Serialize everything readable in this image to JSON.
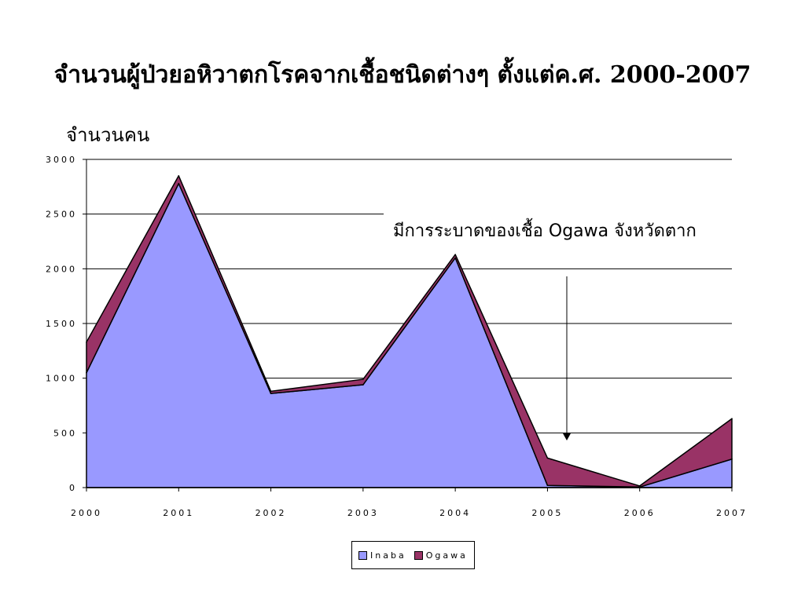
{
  "chart_data": {
    "type": "area",
    "stacked": true,
    "title": "จำนวนผู้ป่วยอหิวาตกโรคจากเชื้อชนิดต่างๆ ตั้งแต่ค.ศ. 2000-2007",
    "ylabel": "จำนวนคน",
    "xlabel": "",
    "categories": [
      "2000",
      "2001",
      "2002",
      "2003",
      "2004",
      "2005",
      "2006",
      "2007"
    ],
    "ylim": [
      0,
      3000
    ],
    "yticks": [
      0,
      500,
      1000,
      1500,
      2000,
      2500,
      3000
    ],
    "grid": "horizontal",
    "legend_position": "bottom",
    "series": [
      {
        "name": "Inaba",
        "color": "#9999FF",
        "values": [
          1050,
          2780,
          860,
          940,
          2100,
          20,
          5,
          260
        ]
      },
      {
        "name": "Ogawa",
        "color": "#993366",
        "values": [
          280,
          70,
          20,
          50,
          30,
          250,
          10,
          370
        ]
      }
    ],
    "annotation": {
      "text": "มีการระบาดของเชื้อ Ogawa จังหวัดตาก",
      "arrow": true
    }
  }
}
